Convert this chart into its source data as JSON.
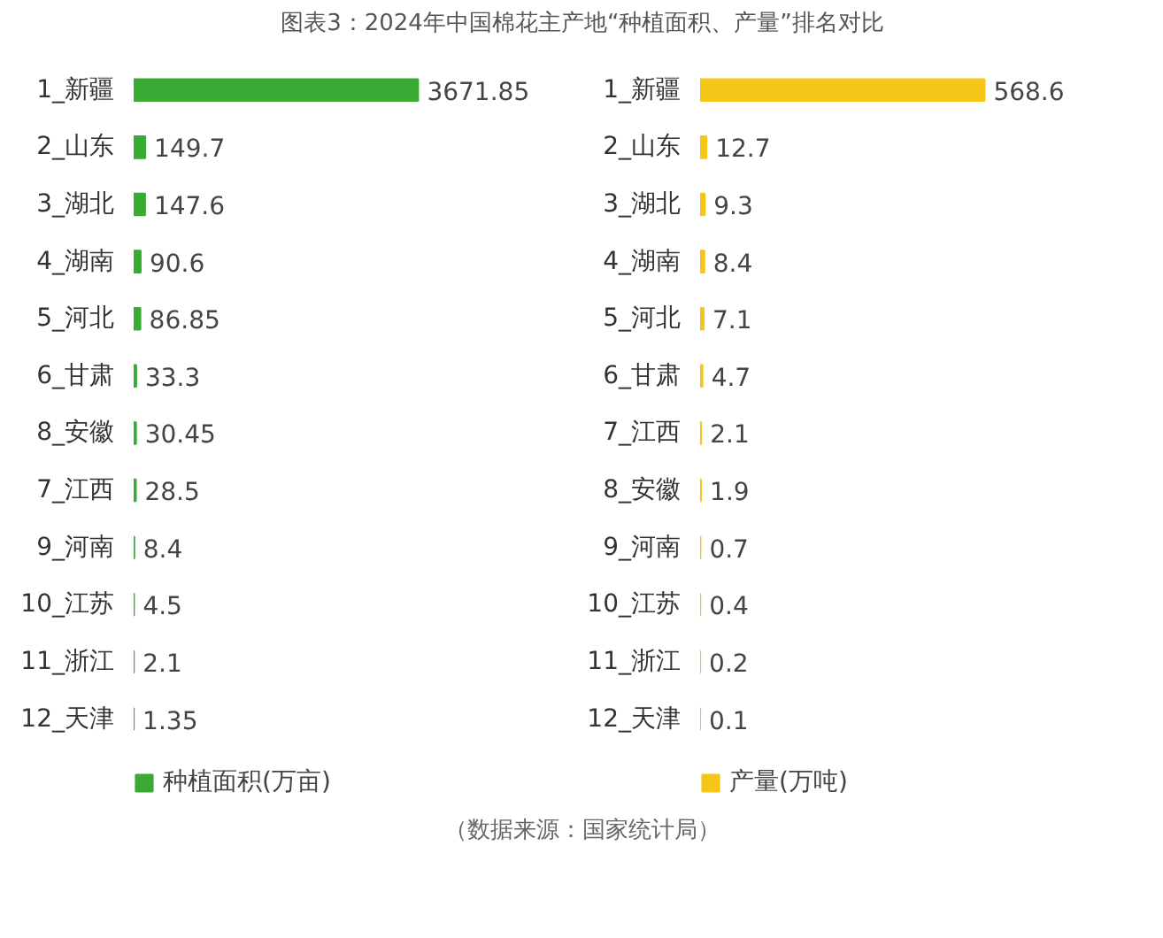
{
  "chart_data": [
    {
      "type": "bar",
      "orientation": "horizontal",
      "title": "图表3：2024年中国棉花主产地“种植面积、产量”排名对比",
      "categories": [
        "1_新疆",
        "2_山东",
        "3_湖北",
        "4_湖南",
        "5_河北",
        "6_甘肃",
        "8_安徽",
        "7_江西",
        "9_河南",
        "10_江苏",
        "11_浙江",
        "12_天津"
      ],
      "series": [
        {
          "name": "种植面积(万亩)",
          "color": "#3aaa35",
          "values": [
            3671.85,
            149.7,
            147.6,
            90.6,
            86.85,
            33.3,
            30.45,
            28.5,
            8.4,
            4.5,
            2.1,
            1.35
          ]
        }
      ],
      "data_labels": true,
      "legend": "bottom",
      "grid": false
    },
    {
      "type": "bar",
      "orientation": "horizontal",
      "categories": [
        "1_新疆",
        "2_山东",
        "3_湖北",
        "4_湖南",
        "5_河北",
        "6_甘肃",
        "7_江西",
        "8_安徽",
        "9_河南",
        "10_江苏",
        "11_浙江",
        "12_天津"
      ],
      "series": [
        {
          "name": "产量(万吨)",
          "color": "#f5c518",
          "values": [
            568.6,
            12.7,
            9.3,
            8.4,
            7.1,
            4.7,
            2.1,
            1.9,
            0.7,
            0.4,
            0.2,
            0.1
          ]
        }
      ],
      "data_labels": true,
      "legend": "bottom",
      "grid": false,
      "annotations": [
        "（数据来源：国家统计局）"
      ]
    }
  ]
}
